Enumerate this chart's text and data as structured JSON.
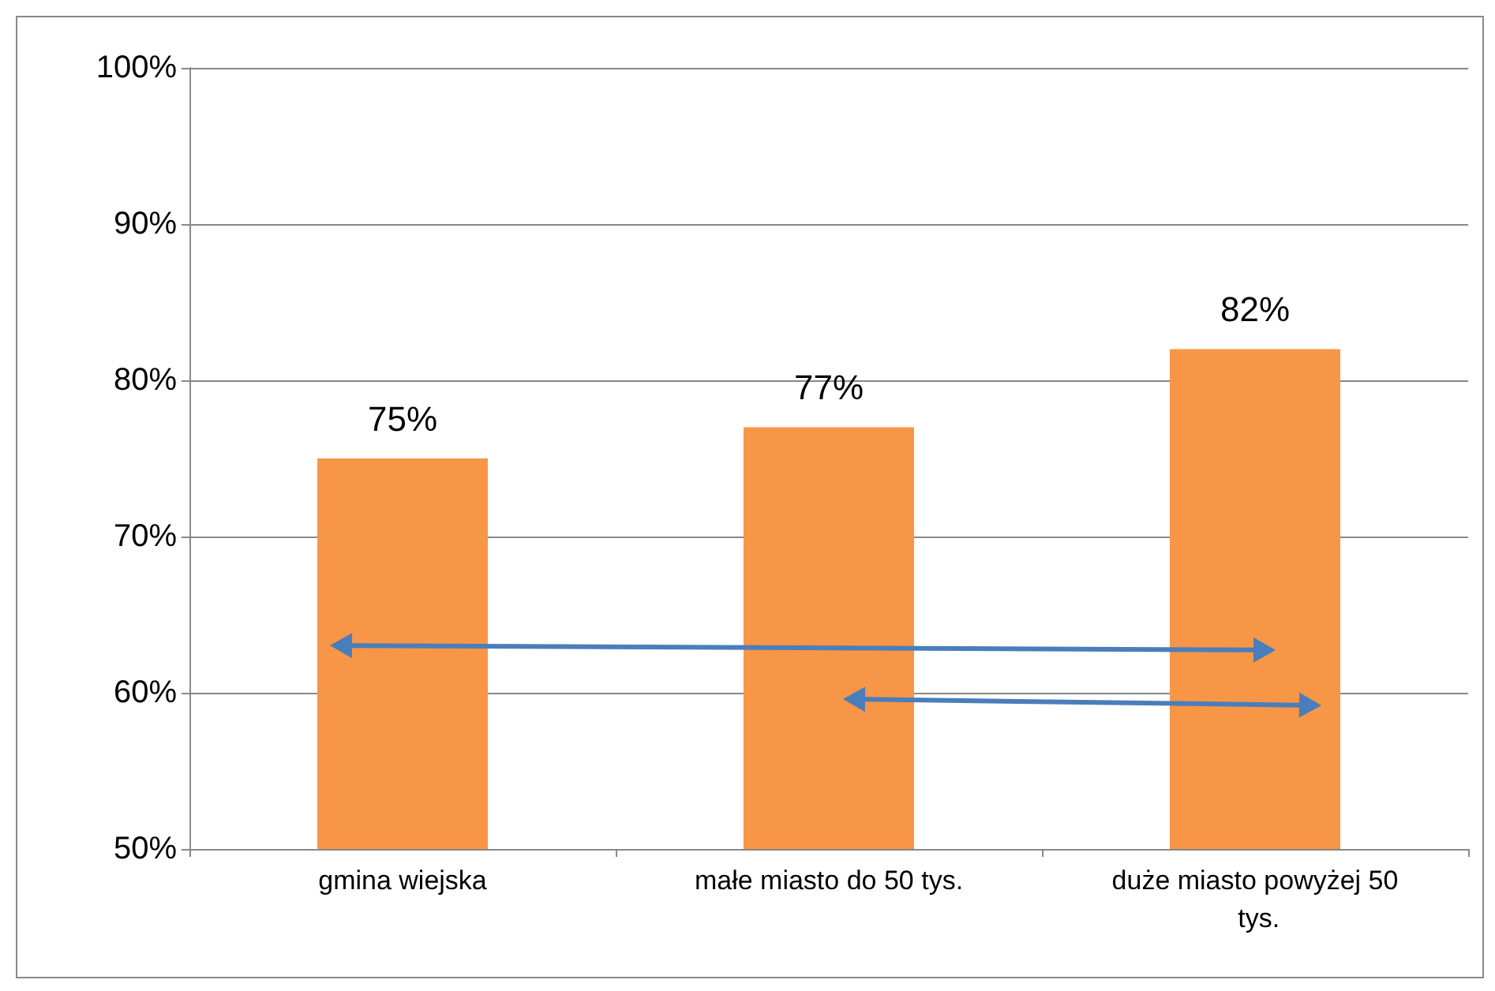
{
  "chart_data": {
    "type": "bar",
    "categories": [
      "gmina wiejska",
      "małe miasto do 50 tys.",
      "duże miasto powyżej 50 tys."
    ],
    "values": [
      75,
      77,
      82
    ],
    "value_labels": [
      "75%",
      "77%",
      "82%"
    ],
    "color": "#f79646",
    "ylim": [
      50,
      100
    ],
    "yticks": [
      {
        "value": 50,
        "label": "50%"
      },
      {
        "value": 60,
        "label": "60%"
      },
      {
        "value": 70,
        "label": "70%"
      },
      {
        "value": 80,
        "label": "80%"
      },
      {
        "value": 90,
        "label": "90%"
      },
      {
        "value": 100,
        "label": "100%"
      }
    ],
    "grid": "y"
  }
}
